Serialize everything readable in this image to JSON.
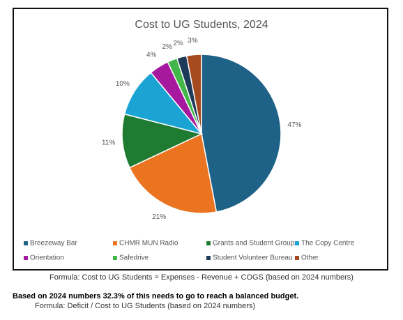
{
  "chart_data": {
    "type": "pie",
    "title": "Cost to UG Students, 2024",
    "categories": [
      "Breezeway Bar",
      "CHMR MUN Radio",
      "Grants and Student Groups",
      "The Copy Centre",
      "Orientation",
      "Safedrive",
      "Student Volunteer Bureau",
      "Other"
    ],
    "values": [
      47,
      21,
      11,
      10,
      4,
      2,
      2,
      3
    ],
    "value_labels": [
      "47%",
      "21%",
      "11%",
      "10%",
      "4%",
      "2%",
      "2%",
      "3%"
    ],
    "colors": [
      "#1f6287",
      "#ea7420",
      "#1f7a32",
      "#1ba3d3",
      "#a6199f",
      "#42b649",
      "#1d3b58",
      "#a44a1e"
    ],
    "legend": "bottom"
  },
  "notes": [
    "Formula: Cost to UG Students = Expenses - Revenue + COGS (based on 2024 numbers)",
    "Based on 2024 numbers 32.3% of this needs to go to reach a balanced budget.",
    "Formula: Deficit / Cost to UG Students (based on 2024 numbers)"
  ]
}
